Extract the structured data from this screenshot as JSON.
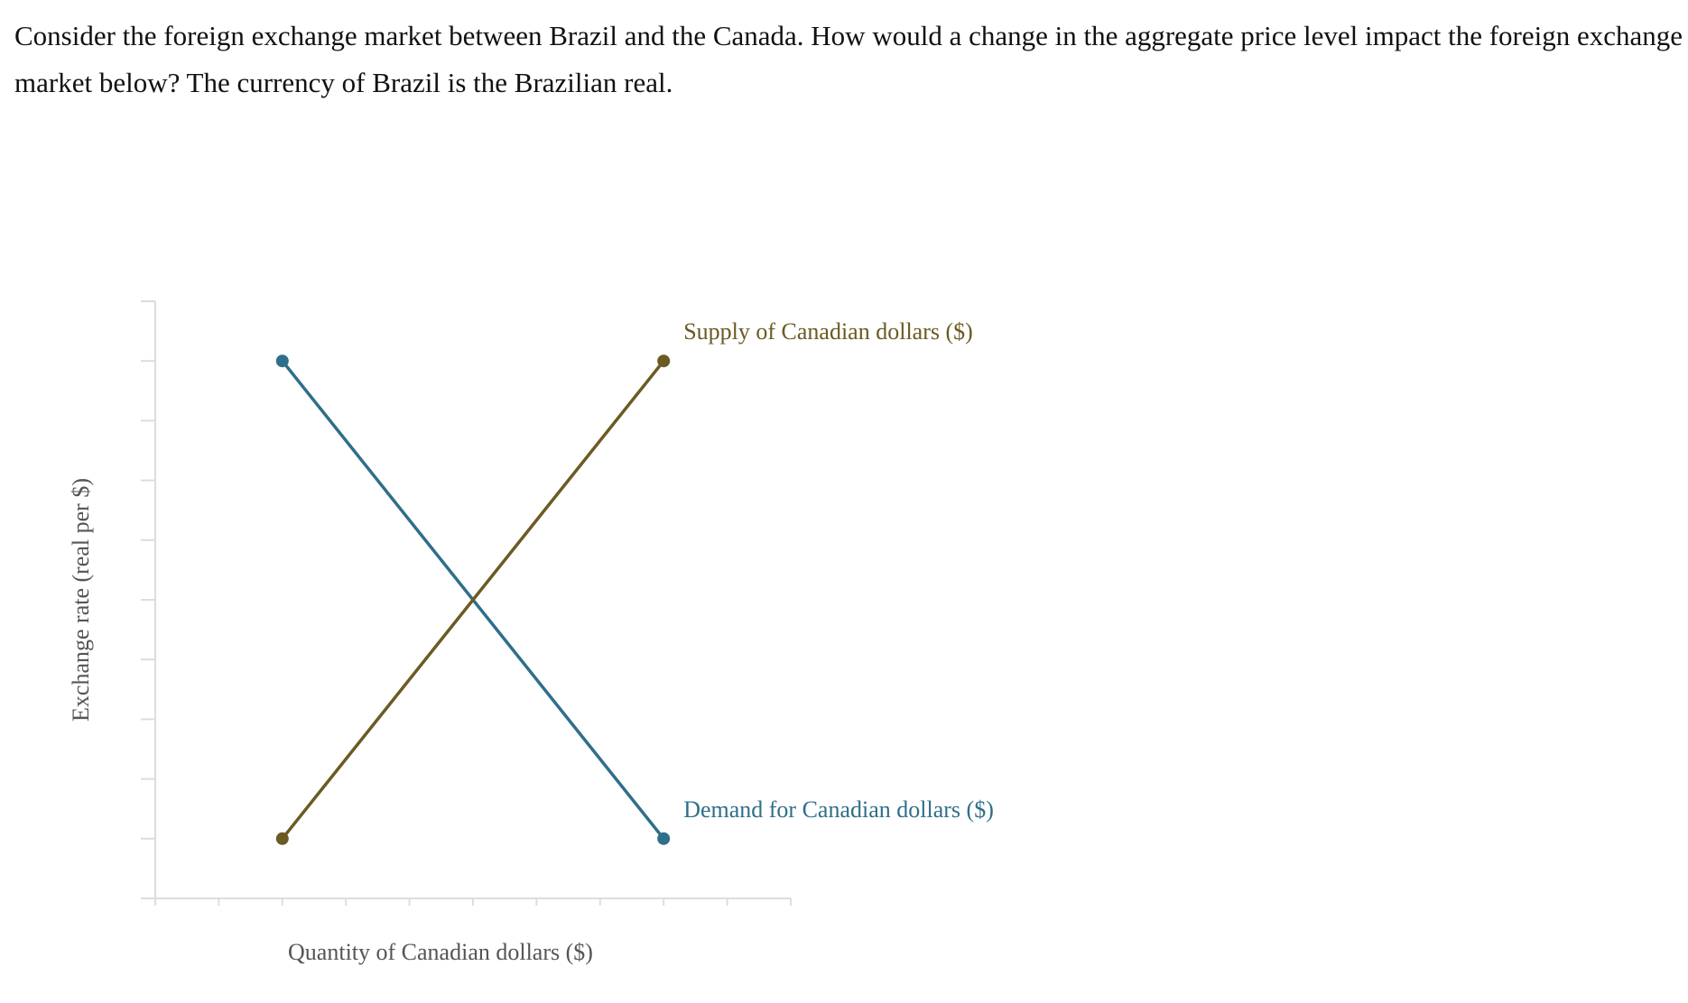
{
  "question": "Consider the foreign exchange market between Brazil and the Canada. How would a change in the aggregate price level impact the foreign exchange market below? The currency of Brazil is the Brazilian real.",
  "chart_data": {
    "type": "line",
    "x_label": "Quantity of Canadian dollars ($)",
    "y_label": "Exchange rate (real per $)",
    "xlim": [
      0,
      10
    ],
    "ylim": [
      0,
      10
    ],
    "xticks": [
      0,
      1,
      2,
      3,
      4,
      5,
      6,
      7,
      8,
      9,
      10
    ],
    "yticks": [
      0,
      1,
      2,
      3,
      4,
      5,
      6,
      7,
      8,
      9,
      10
    ],
    "x": [
      2,
      8
    ],
    "series": [
      {
        "name": "Demand for Canadian dollars ($)",
        "color": "#2e6f8a",
        "values": [
          9,
          1
        ]
      },
      {
        "name": "Supply of Canadian dollars ($)",
        "color": "#6b5a22",
        "values": [
          1,
          9
        ]
      }
    ]
  }
}
